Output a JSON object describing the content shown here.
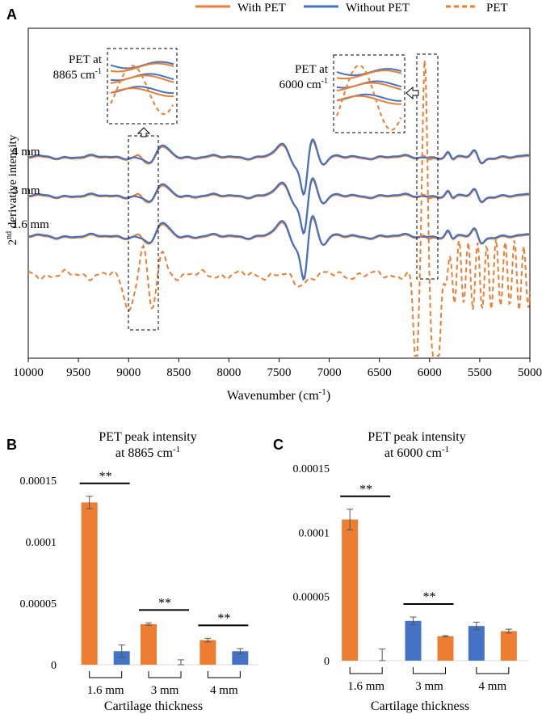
{
  "colors": {
    "with_pet": "#ED7D31",
    "without_pet": "#4472C4",
    "axis": "#000000"
  },
  "panel_labels": {
    "a": "A",
    "b": "B",
    "c": "C"
  },
  "chart_data": [
    {
      "id": "A",
      "type": "line",
      "xlabel": "Wavenumber (cm",
      "xlabel_sup": "-1",
      "xlabel_end": ")",
      "ylabel": "derivative intensity",
      "ylabel_prefix": "2",
      "ylabel_sup": "nd",
      "x_ticks": [
        "10000",
        "9500",
        "9000",
        "8500",
        "8000",
        "7500",
        "7000",
        "6500",
        "6000",
        "5500",
        "5000"
      ],
      "xlim": [
        10000,
        5000
      ],
      "legend": {
        "placement": "top",
        "entries": [
          "With PET",
          "Without PET",
          "PET"
        ]
      },
      "series": [
        {
          "name": "With PET",
          "style": "solid-orange"
        },
        {
          "name": "Without PET",
          "style": "solid-blue"
        },
        {
          "name": "PET",
          "style": "dashed-orange"
        }
      ],
      "trace_labels": [
        "4 mm",
        "3 mm",
        "1.6 mm"
      ],
      "inset_labels": [
        {
          "line1": "PET at",
          "line2": "8865 cm",
          "sup": "-1"
        },
        {
          "line1": "PET at",
          "line2": "6000 cm",
          "sup": "-1"
        }
      ]
    },
    {
      "id": "B",
      "type": "bar",
      "title": [
        "PET peak intensity",
        "at 8865 cm"
      ],
      "title_sup": "-1",
      "xlabel": "Cartilage thickness",
      "categories": [
        "1.6 mm",
        "3 mm",
        "4 mm"
      ],
      "y_ticks": [
        "0",
        "0.00005",
        "0.0001",
        "0.00015"
      ],
      "ylim": [
        0,
        0.00015
      ],
      "bars": [
        {
          "category": "1.6 mm",
          "color": "orange",
          "value": 0.000132,
          "err": 5e-06
        },
        {
          "category": "1.6 mm",
          "color": "blue",
          "value": 1.1e-05,
          "err": 5e-06
        },
        {
          "category": "3 mm",
          "color": "orange",
          "value": 3.3e-05,
          "err": 1e-06
        },
        {
          "category": "3 mm",
          "color": "blue",
          "value": 0.0,
          "err": 4e-06
        },
        {
          "category": "4 mm",
          "color": "orange",
          "value": 2e-05,
          "err": 1.5e-06
        },
        {
          "category": "4 mm",
          "color": "blue",
          "value": 1.1e-05,
          "err": 2e-06
        }
      ],
      "significance": [
        "**",
        "**",
        "**"
      ]
    },
    {
      "id": "C",
      "type": "bar",
      "title": [
        "PET peak intensity",
        "at 6000 cm"
      ],
      "title_sup": "-1",
      "xlabel": "Cartilage thickness",
      "categories": [
        "1.6 mm",
        "3 mm",
        "4 mm"
      ],
      "y_ticks": [
        "0",
        "0.00005",
        "0.0001",
        "0.00015"
      ],
      "ylim": [
        0,
        0.00015
      ],
      "bars": [
        {
          "category": "1.6 mm",
          "color": "orange",
          "value": 0.00011,
          "err": 8e-06
        },
        {
          "category": "1.6 mm",
          "color": "blue",
          "value": 0.0,
          "err": 9e-06
        },
        {
          "category": "3 mm",
          "color": "blue",
          "value": 3.1e-05,
          "err": 3e-06
        },
        {
          "category": "3 mm",
          "color": "orange",
          "value": 1.9e-05,
          "err": 5e-07
        },
        {
          "category": "4 mm",
          "color": "blue",
          "value": 2.7e-05,
          "err": 3e-06
        },
        {
          "category": "4 mm",
          "color": "orange",
          "value": 2.3e-05,
          "err": 1.5e-06
        }
      ],
      "significance": [
        "**",
        "**"
      ]
    }
  ]
}
